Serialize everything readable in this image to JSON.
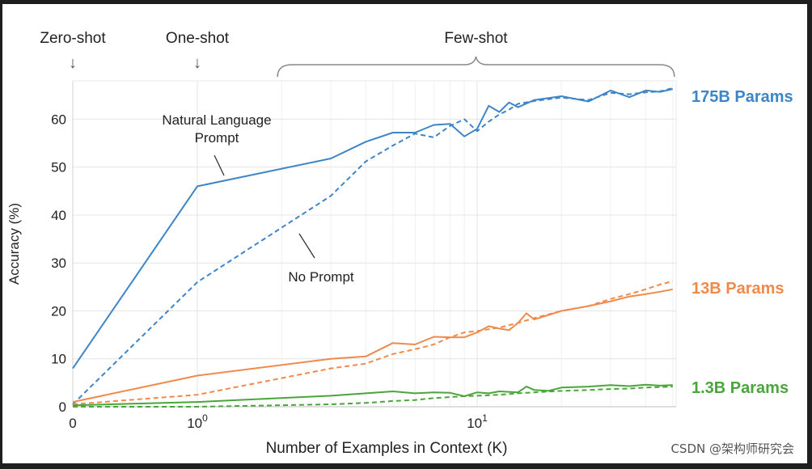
{
  "chart_data": {
    "type": "line",
    "title": "",
    "xlabel": "Number of Examples in Context  (K)",
    "ylabel": "Accuracy (%)",
    "x_scale": "log",
    "xlim": [
      0,
      50
    ],
    "ylim": [
      0,
      68
    ],
    "y_ticks": [
      0,
      10,
      20,
      30,
      40,
      50,
      60
    ],
    "x_ticks": [
      {
        "value": 0,
        "label": "0"
      },
      {
        "value": 1,
        "label": "10",
        "exp": "0"
      },
      {
        "value": 10,
        "label": "10",
        "exp": "1"
      }
    ],
    "grid": true,
    "top_annotations": [
      {
        "text": "Zero-shot",
        "arrow": "↓",
        "x": 0
      },
      {
        "text": "One-shot",
        "arrow": "↓",
        "x": 1
      },
      {
        "text": "Few-shot",
        "brace_from": 2,
        "brace_to": 50
      }
    ],
    "inline_annotations": [
      {
        "text": "Natural Language",
        "line2": "Prompt"
      },
      {
        "text": "No Prompt"
      }
    ],
    "model_labels": [
      {
        "text": "175B Params",
        "color": "#3d85c6"
      },
      {
        "text": "13B Params",
        "color": "#f08a4b"
      },
      {
        "text": "1.3B Params",
        "color": "#4aa53b"
      }
    ],
    "series": [
      {
        "model": "175B",
        "prompt": "natural-language",
        "color": "#3d85c6",
        "x": [
          0,
          1,
          3,
          4,
          5,
          6,
          7,
          8,
          9,
          10,
          11,
          12,
          13,
          14,
          16,
          20,
          25,
          30,
          35,
          40,
          45,
          50
        ],
        "y": [
          8,
          46,
          51.8,
          55.3,
          57.2,
          57.2,
          58.8,
          59,
          56.4,
          58,
          62.8,
          61.5,
          63.5,
          62.5,
          64,
          64.8,
          63.7,
          66,
          64.6,
          66,
          65.7,
          66.3
        ]
      },
      {
        "model": "175B",
        "prompt": "none",
        "color": "#3d85c6",
        "x": [
          0,
          1,
          3,
          4,
          5,
          6,
          7,
          8,
          9,
          10,
          11,
          12,
          13,
          14,
          16,
          20,
          25,
          30,
          35,
          40,
          45,
          50
        ],
        "y": [
          0.5,
          26,
          44,
          51.2,
          54.5,
          57,
          56.2,
          58.6,
          60,
          57.5,
          59.5,
          61,
          62,
          63.2,
          63.8,
          64.5,
          64,
          65.5,
          65.2,
          65.6,
          65.8,
          66.5
        ]
      },
      {
        "model": "13B",
        "prompt": "natural-language",
        "color": "#f08a4b",
        "x": [
          0,
          1,
          3,
          4,
          5,
          6,
          7,
          8,
          9,
          10,
          11,
          12,
          13,
          14,
          15,
          16,
          20,
          25,
          30,
          35,
          40,
          45,
          50
        ],
        "y": [
          1,
          6.5,
          10,
          10.5,
          13.3,
          13,
          14.6,
          14.5,
          14.5,
          15.5,
          16.8,
          16.3,
          16,
          17.5,
          19.5,
          18.2,
          20,
          21,
          22,
          23,
          23.5,
          24,
          24.5
        ]
      },
      {
        "model": "13B",
        "prompt": "none",
        "color": "#f08a4b",
        "x": [
          0,
          1,
          3,
          4,
          5,
          6,
          7,
          8,
          9,
          10,
          12,
          14,
          16,
          20,
          25,
          30,
          35,
          40,
          45,
          50
        ],
        "y": [
          0.5,
          2.5,
          8,
          9,
          11,
          12,
          13,
          14.5,
          15.5,
          15.8,
          16.5,
          17.5,
          18.5,
          20,
          21,
          22.5,
          23.5,
          24.5,
          25.5,
          26.2
        ]
      },
      {
        "model": "1.3B",
        "prompt": "natural-language",
        "color": "#4aa53b",
        "x": [
          0,
          1,
          3,
          4,
          5,
          6,
          7,
          8,
          9,
          10,
          11,
          12,
          14,
          15,
          16,
          18,
          20,
          25,
          30,
          35,
          40,
          45,
          50
        ],
        "y": [
          0.3,
          1,
          2.3,
          2.8,
          3.2,
          2.8,
          3,
          2.9,
          2.2,
          3,
          2.8,
          3.2,
          3,
          4.2,
          3.5,
          3.3,
          4,
          4.2,
          4.5,
          4.3,
          4.6,
          4.4,
          4.5
        ]
      },
      {
        "model": "1.3B",
        "prompt": "none",
        "color": "#4aa53b",
        "x": [
          0,
          1,
          3,
          4,
          5,
          6,
          7,
          8,
          9,
          10,
          12,
          14,
          16,
          20,
          25,
          30,
          35,
          40,
          45,
          50
        ],
        "y": [
          0,
          0,
          0.5,
          0.8,
          1.2,
          1.4,
          1.8,
          2,
          2.2,
          2.3,
          2.5,
          2.8,
          3,
          3.3,
          3.5,
          3.7,
          3.8,
          4,
          4.1,
          4.2
        ]
      }
    ]
  },
  "watermark": "CSDN @架构师研究会"
}
